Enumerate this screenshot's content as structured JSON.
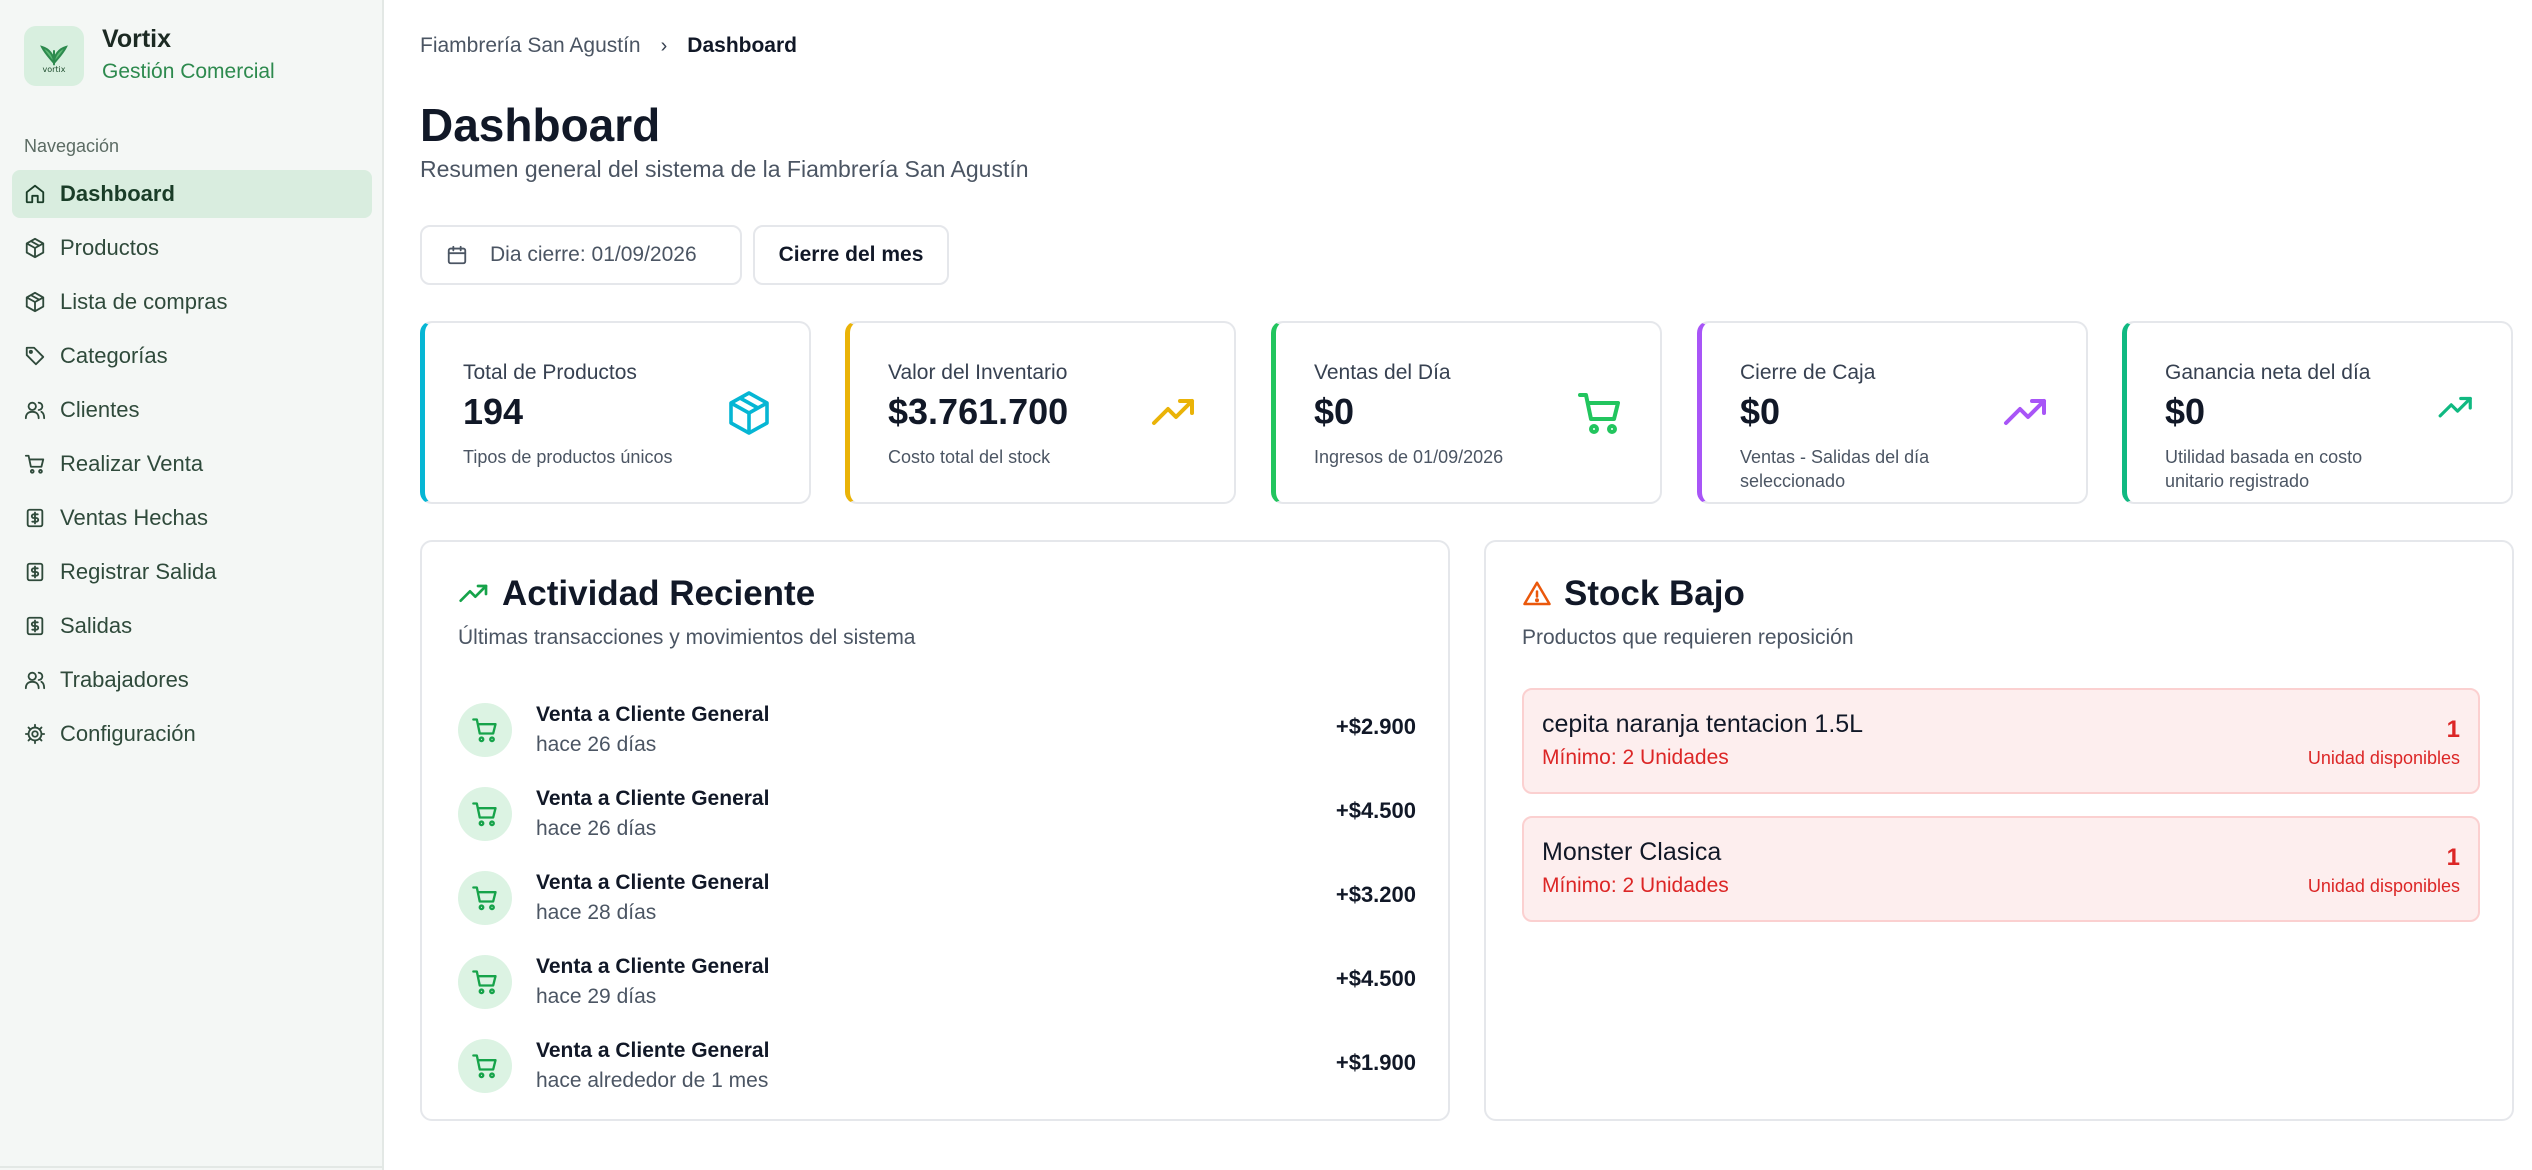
{
  "brand": {
    "name": "Vortix",
    "subtitle": "Gestión Comercial",
    "logo_text": "vortix",
    "icon": "leaf-logo-icon"
  },
  "nav": {
    "heading": "Navegación",
    "items": [
      {
        "label": "Dashboard",
        "icon": "home-icon",
        "active": true
      },
      {
        "label": "Productos",
        "icon": "box-icon"
      },
      {
        "label": "Lista de compras",
        "icon": "box-icon"
      },
      {
        "label": "Categorías",
        "icon": "tag-icon"
      },
      {
        "label": "Clientes",
        "icon": "users-icon"
      },
      {
        "label": "Realizar Venta",
        "icon": "cart-icon"
      },
      {
        "label": "Ventas Hechas",
        "icon": "dollar-doc-icon"
      },
      {
        "label": "Registrar Salida",
        "icon": "dollar-doc-icon"
      },
      {
        "label": "Salidas",
        "icon": "dollar-doc-icon"
      },
      {
        "label": "Trabajadores",
        "icon": "users-icon"
      },
      {
        "label": "Configuración",
        "icon": "gear-icon"
      }
    ]
  },
  "breadcrumb": {
    "parent": "Fiambrería San Agustín",
    "separator": "›",
    "current": "Dashboard"
  },
  "header": {
    "title": "Dashboard",
    "subtitle": "Resumen general del sistema de la Fiambrería San Agustín"
  },
  "controls": {
    "date_label": "Dia cierre: 01/09/2026",
    "close_month": "Cierre del mes"
  },
  "cards": [
    {
      "label": "Total de Productos",
      "value": "194",
      "desc": "Tipos de productos únicos",
      "color": "#06b6d4",
      "icon": "box-icon"
    },
    {
      "label": "Valor del Inventario",
      "value": "$3.761.700",
      "desc": "Costo total del stock",
      "color": "#eab308",
      "icon": "trending-up-icon"
    },
    {
      "label": "Ventas del Día",
      "value": "$0",
      "desc": "Ingresos de 01/09/2026",
      "color": "#22c55e",
      "icon": "cart-icon"
    },
    {
      "label": "Cierre de Caja",
      "value": "$0",
      "desc": "Ventas - Salidas del día seleccionado",
      "color": "#a855f7",
      "icon": "trending-up-icon"
    },
    {
      "label": "Ganancia neta del día",
      "value": "$0",
      "desc": "Utilidad basada en costo unitario registrado",
      "color": "#10b981",
      "icon": "trending-up-icon"
    }
  ],
  "activity": {
    "title": "Actividad Reciente",
    "subtitle": "Últimas transacciones y movimientos del sistema",
    "items": [
      {
        "title": "Venta a Cliente General",
        "time": "hace 26 días",
        "amount": "+$2.900"
      },
      {
        "title": "Venta a Cliente General",
        "time": "hace 26 días",
        "amount": "+$4.500"
      },
      {
        "title": "Venta a Cliente General",
        "time": "hace 28 días",
        "amount": "+$3.200"
      },
      {
        "title": "Venta a Cliente General",
        "time": "hace 29 días",
        "amount": "+$4.500"
      },
      {
        "title": "Venta a Cliente General",
        "time": "hace alrededor de 1 mes",
        "amount": "+$1.900"
      }
    ]
  },
  "stock": {
    "title": "Stock Bajo",
    "subtitle": "Productos que requieren reposición",
    "items": [
      {
        "name": "cepita naranja tentacion 1.5L",
        "min": "Mínimo: 2 Unidades",
        "qty": "1",
        "unit": "Unidad disponibles"
      },
      {
        "name": "Monster Clasica",
        "min": "Mínimo: 2 Unidades",
        "qty": "1",
        "unit": "Unidad disponibles"
      }
    ]
  },
  "colors": {
    "accent": "#2d8a4e",
    "danger": "#dc2626",
    "active_nav_bg": "#d9eddf"
  }
}
